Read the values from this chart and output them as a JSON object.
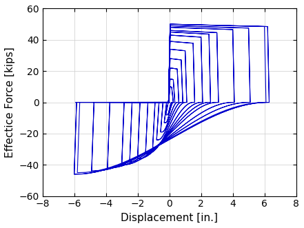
{
  "title": "",
  "xlabel": "Displacement [in.]",
  "ylabel": "Effectice Force [kips]",
  "xlim": [
    -8,
    8
  ],
  "ylim": [
    -60,
    60
  ],
  "xticks": [
    -8,
    -6,
    -4,
    -2,
    0,
    2,
    4,
    6,
    8
  ],
  "yticks": [
    -60,
    -40,
    -20,
    0,
    20,
    40,
    60
  ],
  "line_color": "#0000CC",
  "line_width": 0.8,
  "background_color": "#ffffff",
  "grid_color": "#cccccc",
  "cycles": [
    {
      "pd": 0.15,
      "nd": -0.12,
      "pf": 10,
      "nf": -8
    },
    {
      "pd": 0.15,
      "nd": -0.12,
      "pf": 10,
      "nf": -8
    },
    {
      "pd": 0.25,
      "nd": -0.22,
      "pf": 15,
      "nf": -13
    },
    {
      "pd": 0.25,
      "nd": -0.22,
      "pf": 15,
      "nf": -13
    },
    {
      "pd": 0.5,
      "nd": -0.45,
      "pf": 22,
      "nf": -19
    },
    {
      "pd": 0.5,
      "nd": -0.45,
      "pf": 22,
      "nf": -19
    },
    {
      "pd": 0.75,
      "nd": -0.7,
      "pf": 28,
      "nf": -24
    },
    {
      "pd": 0.75,
      "nd": -0.7,
      "pf": 28,
      "nf": -24
    },
    {
      "pd": 1.0,
      "nd": -0.95,
      "pf": 34,
      "nf": -29
    },
    {
      "pd": 1.0,
      "nd": -0.95,
      "pf": 34,
      "nf": -29
    },
    {
      "pd": 1.5,
      "nd": -1.4,
      "pf": 39,
      "nf": -33
    },
    {
      "pd": 1.5,
      "nd": -1.4,
      "pf": 39,
      "nf": -33
    },
    {
      "pd": 2.0,
      "nd": -1.9,
      "pf": 43,
      "nf": -36
    },
    {
      "pd": 2.0,
      "nd": -1.9,
      "pf": 43,
      "nf": -36
    },
    {
      "pd": 2.5,
      "nd": -2.4,
      "pf": 45,
      "nf": -38
    },
    {
      "pd": 2.5,
      "nd": -2.4,
      "pf": 45,
      "nf": -38
    },
    {
      "pd": 3.0,
      "nd": -2.9,
      "pf": 46,
      "nf": -40
    },
    {
      "pd": 3.0,
      "nd": -2.9,
      "pf": 46,
      "nf": -40
    },
    {
      "pd": 4.0,
      "nd": -3.8,
      "pf": 48,
      "nf": -42
    },
    {
      "pd": 4.0,
      "nd": -3.8,
      "pf": 48,
      "nf": -42
    },
    {
      "pd": 5.0,
      "nd": -4.8,
      "pf": 49,
      "nf": -44
    },
    {
      "pd": 5.0,
      "nd": -4.8,
      "pf": 49,
      "nf": -44
    },
    {
      "pd": 6.0,
      "nd": -5.7,
      "pf": 50,
      "nf": -45
    },
    {
      "pd": 6.2,
      "nd": -5.9,
      "pf": 50,
      "nf": -46
    },
    {
      "pd": 6.2,
      "nd": -5.9,
      "pf": 50,
      "nf": -46
    }
  ]
}
